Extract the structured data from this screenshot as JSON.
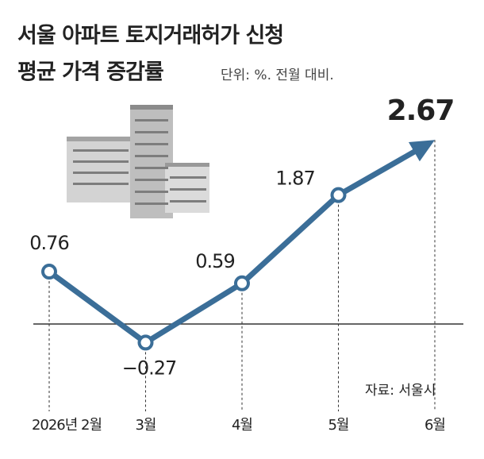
{
  "chart_data": {
    "type": "line",
    "title": [
      "서울 아파트 토지거래허가 신청",
      "평균 가격 증감률"
    ],
    "subtitle": "단위: %. 전월 대비.",
    "source": "자료: 서울시",
    "categories": [
      "2026년 2월",
      "3월",
      "4월",
      "5월",
      "6월"
    ],
    "values": [
      0.76,
      -0.27,
      0.59,
      1.87,
      2.67
    ],
    "value_labels": [
      "0.76",
      "−0.27",
      "0.59",
      "1.87",
      "2.67"
    ],
    "color": "#3b6e98",
    "ylim": [
      -1,
      3
    ]
  }
}
